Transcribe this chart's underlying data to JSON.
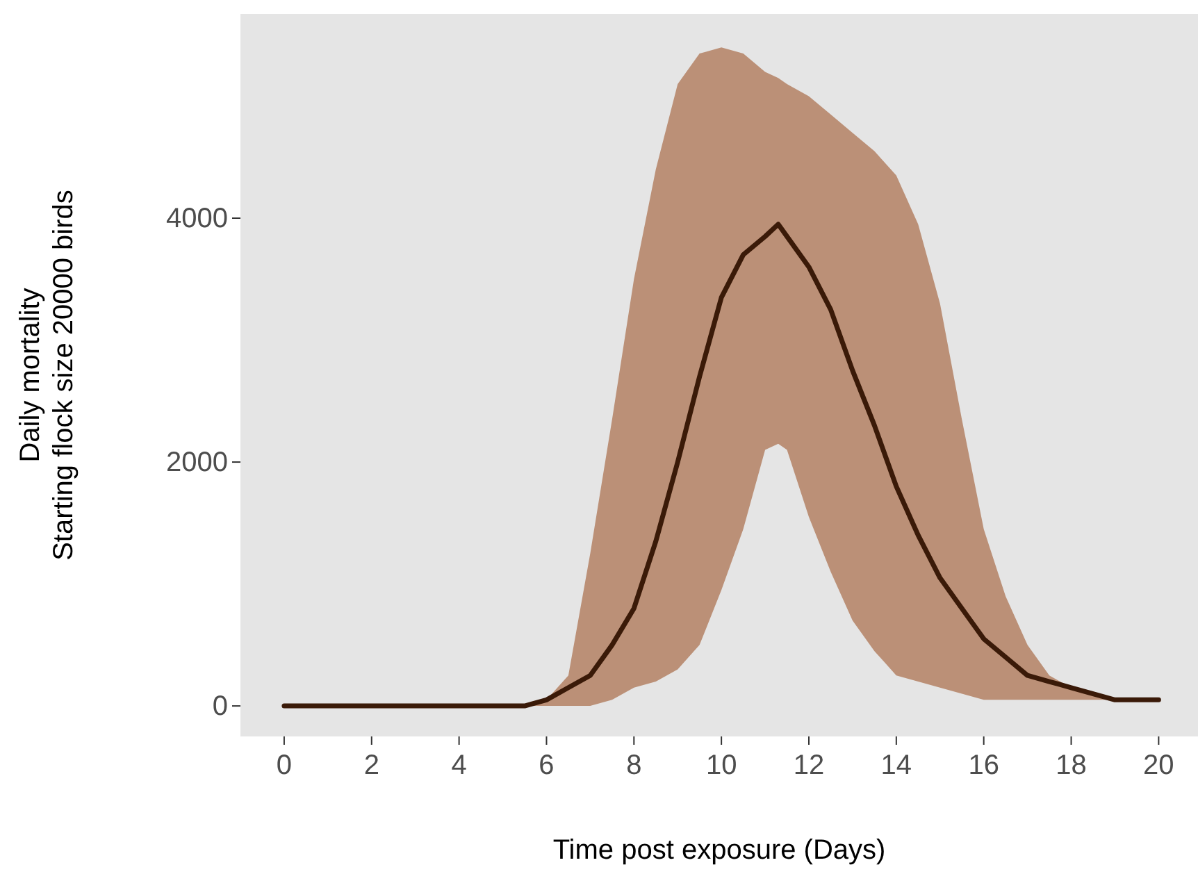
{
  "chart_data": {
    "type": "line",
    "xlabel": "Time post exposure (Days)",
    "ylabel": "Daily mortality\nStarting flock size 20000 birds",
    "xlim": [
      -1,
      20.9
    ],
    "ylim": [
      -250,
      5675
    ],
    "xticks": [
      0,
      2,
      4,
      6,
      8,
      10,
      12,
      14,
      16,
      18,
      20
    ],
    "yticks": [
      0,
      2000,
      4000
    ],
    "series": [
      {
        "color": "#3a1a08",
        "x": [
          0,
          1,
          2,
          3,
          4,
          5,
          5.5,
          6,
          6.5,
          7,
          7.5,
          8,
          8.5,
          9,
          9.5,
          10,
          10.5,
          11,
          11.3,
          11.5,
          12,
          12.5,
          13,
          13.5,
          14,
          14.5,
          15,
          15.5,
          16,
          16.5,
          17,
          17.5,
          18,
          19,
          20
        ],
        "values": [
          0,
          0,
          0,
          0,
          0,
          0,
          0,
          50,
          150,
          250,
          500,
          800,
          1350,
          2000,
          2700,
          3350,
          3700,
          3850,
          3950,
          3850,
          3600,
          3250,
          2750,
          2300,
          1800,
          1400,
          1050,
          800,
          550,
          400,
          250,
          200,
          150,
          50,
          50
        ],
        "lower": [
          0,
          0,
          0,
          0,
          0,
          0,
          0,
          0,
          0,
          0,
          50,
          150,
          200,
          300,
          500,
          950,
          1450,
          2100,
          2150,
          2100,
          1550,
          1100,
          700,
          450,
          250,
          200,
          150,
          100,
          50,
          50,
          50,
          50,
          50,
          50,
          50
        ],
        "upper": [
          0,
          0,
          0,
          0,
          0,
          0,
          0,
          50,
          250,
          1250,
          2350,
          3500,
          4400,
          5100,
          5350,
          5400,
          5350,
          5200,
          5150,
          5100,
          5000,
          4850,
          4700,
          4550,
          4350,
          3950,
          3300,
          2350,
          1450,
          900,
          500,
          250,
          150,
          50,
          50
        ]
      }
    ]
  }
}
